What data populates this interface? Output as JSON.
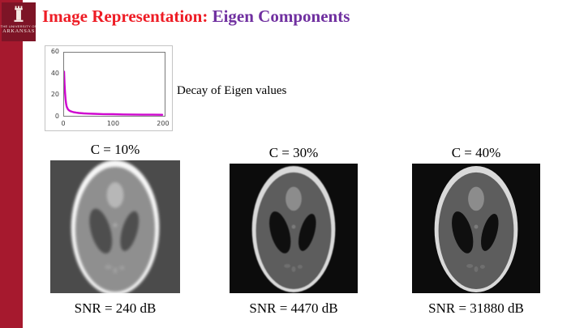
{
  "title": {
    "part1": "Image Representation:",
    "part2": " Eigen Components"
  },
  "logo": {
    "line1": "THE UNIVERSITY OF",
    "line2": "ARKANSAS"
  },
  "colors": {
    "accent_bar": "#a6192e",
    "title_red": "#ee1c25",
    "title_purple": "#7030a0",
    "curve_magenta": "#cf06cf"
  },
  "chart_caption": "Decay of  Eigen values",
  "chart_data": {
    "type": "line",
    "title": "",
    "xlabel": "",
    "ylabel": "",
    "annotation": "Decay of  Eigen values",
    "x": [
      0,
      1,
      2,
      3,
      4,
      5,
      6,
      8,
      10,
      13,
      16,
      20,
      25,
      30,
      40,
      50,
      60,
      80,
      100,
      120,
      140,
      160,
      180,
      200
    ],
    "y": [
      42,
      30,
      22,
      16,
      12,
      9.5,
      8,
      6.2,
      5.2,
      4.4,
      3.9,
      3.4,
      3.0,
      2.7,
      2.3,
      2.1,
      1.9,
      1.6,
      1.5,
      1.3,
      1.2,
      1.1,
      1.05,
      1.0
    ],
    "xticks": [
      0,
      100,
      200
    ],
    "yticks": [
      0,
      20,
      40,
      60
    ],
    "xlim": [
      0,
      205
    ],
    "ylim": [
      0,
      60
    ],
    "line_color": "#cf06cf",
    "grid": false,
    "legend": null
  },
  "reconstructions": [
    {
      "c_label": "C = 10%",
      "snr_label": "SNR = 240 dB"
    },
    {
      "c_label": "C = 30%",
      "snr_label": "SNR = 4470 dB"
    },
    {
      "c_label": "C = 40%",
      "snr_label": "SNR = 31880 dB"
    }
  ]
}
